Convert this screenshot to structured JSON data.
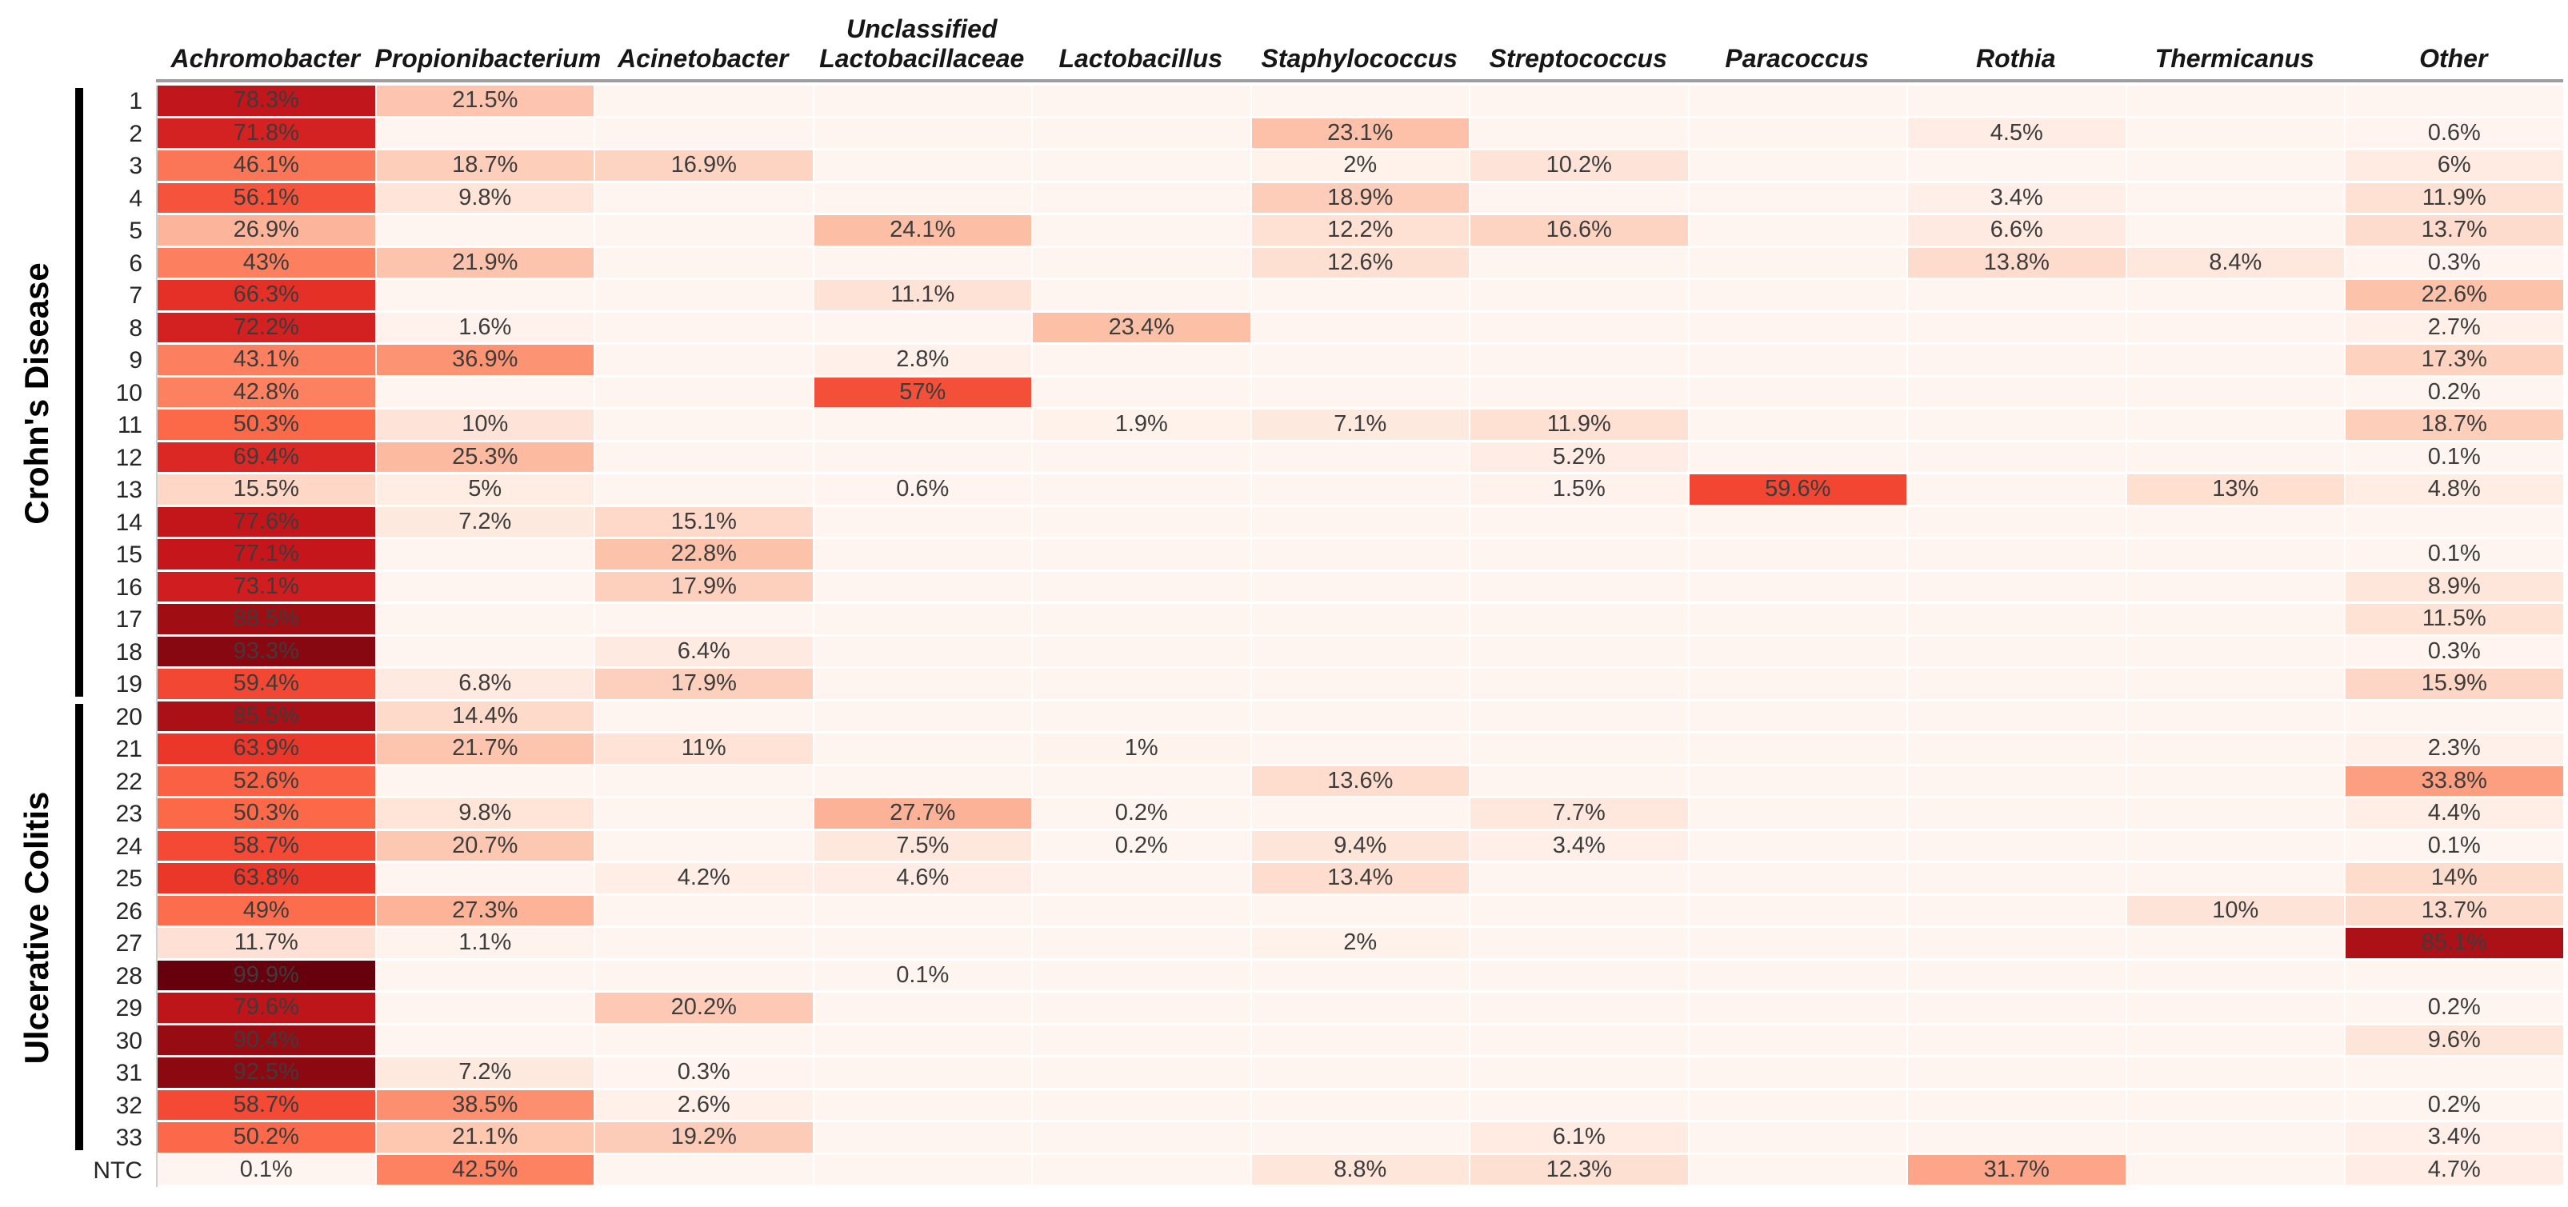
{
  "chart_data": {
    "type": "heatmap",
    "unit": "%",
    "colormap": "Reds",
    "value_range": [
      0,
      100
    ],
    "grid": "off",
    "columns": [
      "Achromobacter",
      "Propionibacterium",
      "Acinetobacter",
      "Unclassified Lactobacillaceae",
      "Lactobacillus",
      "Staphylococcus",
      "Streptococcus",
      "Paracoccus",
      "Rothia",
      "Thermicanus",
      "Other"
    ],
    "column_header_lines": [
      [
        "Achromobacter"
      ],
      [
        "Propionibacterium"
      ],
      [
        "Acinetobacter"
      ],
      [
        "Unclassified",
        "Lactobacillaceae"
      ],
      [
        "Lactobacillus"
      ],
      [
        "Staphylococcus"
      ],
      [
        "Streptococcus"
      ],
      [
        "Paracoccus"
      ],
      [
        "Rothia"
      ],
      [
        "Thermicanus"
      ],
      [
        "Other"
      ]
    ],
    "row_groups": [
      {
        "label": "Crohn's Disease",
        "first_row": "1",
        "last_row": "19"
      },
      {
        "label": "Ulcerative Colitis",
        "first_row": "20",
        "last_row": "33"
      }
    ],
    "rows": [
      {
        "label": "1",
        "values": [
          78.3,
          21.5,
          null,
          null,
          null,
          null,
          null,
          null,
          null,
          null,
          null
        ]
      },
      {
        "label": "2",
        "values": [
          71.8,
          null,
          null,
          null,
          null,
          23.1,
          null,
          null,
          4.5,
          null,
          0.6
        ]
      },
      {
        "label": "3",
        "values": [
          46.1,
          18.7,
          16.9,
          null,
          null,
          2,
          10.2,
          null,
          null,
          null,
          6
        ]
      },
      {
        "label": "4",
        "values": [
          56.1,
          9.8,
          null,
          null,
          null,
          18.9,
          null,
          null,
          3.4,
          null,
          11.9
        ]
      },
      {
        "label": "5",
        "values": [
          26.9,
          null,
          null,
          24.1,
          null,
          12.2,
          16.6,
          null,
          6.6,
          null,
          13.7
        ]
      },
      {
        "label": "6",
        "values": [
          43,
          21.9,
          null,
          null,
          null,
          12.6,
          null,
          null,
          13.8,
          8.4,
          0.3
        ]
      },
      {
        "label": "7",
        "values": [
          66.3,
          null,
          null,
          11.1,
          null,
          null,
          null,
          null,
          null,
          null,
          22.6
        ]
      },
      {
        "label": "8",
        "values": [
          72.2,
          1.6,
          null,
          null,
          23.4,
          null,
          null,
          null,
          null,
          null,
          2.7
        ]
      },
      {
        "label": "9",
        "values": [
          43.1,
          36.9,
          null,
          2.8,
          null,
          null,
          null,
          null,
          null,
          null,
          17.3
        ]
      },
      {
        "label": "10",
        "values": [
          42.8,
          null,
          null,
          57,
          null,
          null,
          null,
          null,
          null,
          null,
          0.2
        ]
      },
      {
        "label": "11",
        "values": [
          50.3,
          10,
          null,
          null,
          1.9,
          7.1,
          11.9,
          null,
          null,
          null,
          18.7
        ]
      },
      {
        "label": "12",
        "values": [
          69.4,
          25.3,
          null,
          null,
          null,
          null,
          5.2,
          null,
          null,
          null,
          0.1
        ]
      },
      {
        "label": "13",
        "values": [
          15.5,
          5,
          null,
          0.6,
          null,
          null,
          1.5,
          59.6,
          null,
          13,
          4.8
        ]
      },
      {
        "label": "14",
        "values": [
          77.6,
          7.2,
          15.1,
          null,
          null,
          null,
          null,
          null,
          null,
          null,
          null
        ]
      },
      {
        "label": "15",
        "values": [
          77.1,
          null,
          22.8,
          null,
          null,
          null,
          null,
          null,
          null,
          null,
          0.1
        ]
      },
      {
        "label": "16",
        "values": [
          73.1,
          null,
          17.9,
          null,
          null,
          null,
          null,
          null,
          null,
          null,
          8.9
        ]
      },
      {
        "label": "17",
        "values": [
          88.5,
          null,
          null,
          null,
          null,
          null,
          null,
          null,
          null,
          null,
          11.5
        ]
      },
      {
        "label": "18",
        "values": [
          93.3,
          null,
          6.4,
          null,
          null,
          null,
          null,
          null,
          null,
          null,
          0.3
        ]
      },
      {
        "label": "19",
        "values": [
          59.4,
          6.8,
          17.9,
          null,
          null,
          null,
          null,
          null,
          null,
          null,
          15.9
        ]
      },
      {
        "label": "20",
        "values": [
          85.5,
          14.4,
          null,
          null,
          null,
          null,
          null,
          null,
          null,
          null,
          null
        ]
      },
      {
        "label": "21",
        "values": [
          63.9,
          21.7,
          11,
          null,
          1,
          null,
          null,
          null,
          null,
          null,
          2.3
        ]
      },
      {
        "label": "22",
        "values": [
          52.6,
          null,
          null,
          null,
          null,
          13.6,
          null,
          null,
          null,
          null,
          33.8
        ]
      },
      {
        "label": "23",
        "values": [
          50.3,
          9.8,
          null,
          27.7,
          0.2,
          null,
          7.7,
          null,
          null,
          null,
          4.4
        ]
      },
      {
        "label": "24",
        "values": [
          58.7,
          20.7,
          null,
          7.5,
          0.2,
          9.4,
          3.4,
          null,
          null,
          null,
          0.1
        ]
      },
      {
        "label": "25",
        "values": [
          63.8,
          null,
          4.2,
          4.6,
          null,
          13.4,
          null,
          null,
          null,
          null,
          14
        ]
      },
      {
        "label": "26",
        "values": [
          49,
          27.3,
          null,
          null,
          null,
          null,
          null,
          null,
          null,
          10,
          13.7
        ]
      },
      {
        "label": "27",
        "values": [
          11.7,
          1.1,
          null,
          null,
          null,
          2,
          null,
          null,
          null,
          null,
          85.1
        ]
      },
      {
        "label": "28",
        "values": [
          99.9,
          null,
          null,
          0.1,
          null,
          null,
          null,
          null,
          null,
          null,
          null
        ]
      },
      {
        "label": "29",
        "values": [
          79.6,
          null,
          20.2,
          null,
          null,
          null,
          null,
          null,
          null,
          null,
          0.2
        ]
      },
      {
        "label": "30",
        "values": [
          90.4,
          null,
          null,
          null,
          null,
          null,
          null,
          null,
          null,
          null,
          9.6
        ]
      },
      {
        "label": "31",
        "values": [
          92.5,
          7.2,
          0.3,
          null,
          null,
          null,
          null,
          null,
          null,
          null,
          null
        ]
      },
      {
        "label": "32",
        "values": [
          58.7,
          38.5,
          2.6,
          null,
          null,
          null,
          null,
          null,
          null,
          null,
          0.2
        ]
      },
      {
        "label": "33",
        "values": [
          50.2,
          21.1,
          19.2,
          null,
          null,
          null,
          6.1,
          null,
          null,
          null,
          3.4
        ]
      },
      {
        "label": "NTC",
        "values": [
          0.1,
          42.5,
          null,
          null,
          null,
          8.8,
          12.3,
          null,
          31.7,
          null,
          4.7
        ]
      }
    ],
    "style": {
      "colormap_anchor_colors": [
        "#fff5f0",
        "#fee0d2",
        "#fcbba1",
        "#fc9272",
        "#fb6a4a",
        "#ef3b2c",
        "#cb181d",
        "#a50f15",
        "#67000d"
      ],
      "empty_cell_color": "#fff5f0",
      "cell_text_color": "#3c3c3c",
      "header_rule_color": "#9e9e9e",
      "group_bar_color": "#000000"
    }
  }
}
